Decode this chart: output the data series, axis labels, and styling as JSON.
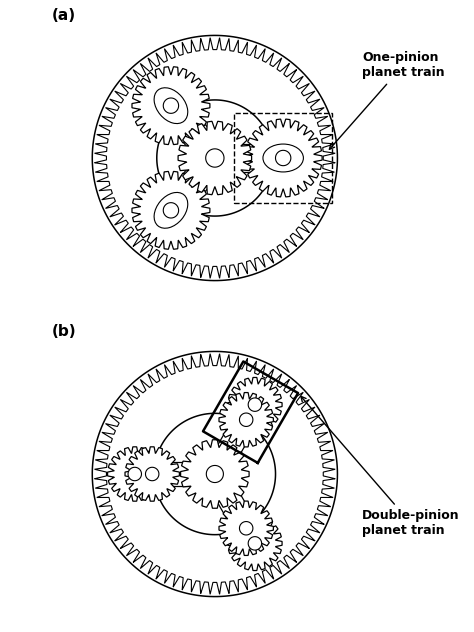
{
  "fig_width": 4.74,
  "fig_height": 6.32,
  "dpi": 100,
  "bg_color": "#ffffff",
  "label_a": "(a)",
  "label_b": "(b)",
  "annotation_a": "One-pinion\nplanet train",
  "annotation_b": "Double-pinion\nplanet train",
  "font_size_label": 11,
  "font_size_annot": 9
}
